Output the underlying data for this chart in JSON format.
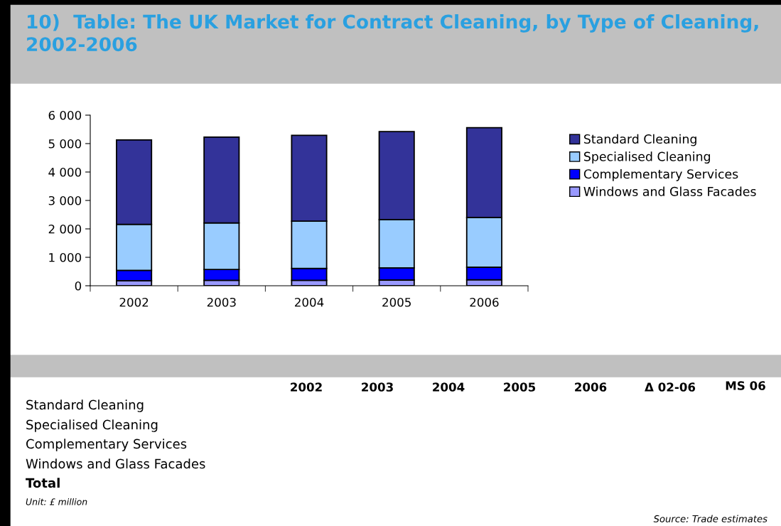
{
  "chart_data": {
    "type": "bar",
    "title": "10)  Table: The UK Market for Contract Cleaning, by Type of Cleaning, 2002-2006",
    "categories": [
      "2002",
      "2003",
      "2004",
      "2005",
      "2006"
    ],
    "stacked": true,
    "series": [
      {
        "name": "Windows and Glass Facades",
        "color": "#9999ff",
        "values": [
          180,
          190,
          190,
          200,
          210
        ]
      },
      {
        "name": "Complementary Services",
        "color": "#0000ff",
        "values": [
          360,
          380,
          420,
          430,
          440
        ]
      },
      {
        "name": "Specialised Cleaning",
        "color": "#99ccff",
        "values": [
          1620,
          1640,
          1660,
          1700,
          1750
        ]
      },
      {
        "name": "Standard Cleaning",
        "color": "#333399",
        "values": [
          2970,
          3020,
          3020,
          3090,
          3160
        ]
      }
    ],
    "ylim": [
      0,
      6000
    ],
    "yticks": [
      {
        "value": 0,
        "label": "0"
      },
      {
        "value": 1000,
        "label": "1 000"
      },
      {
        "value": 2000,
        "label": "2 000"
      },
      {
        "value": 3000,
        "label": "3 000"
      },
      {
        "value": 4000,
        "label": "4 000"
      },
      {
        "value": 5000,
        "label": "5 000"
      },
      {
        "value": 6000,
        "label": "6 000"
      }
    ],
    "grid": false,
    "legend": "right",
    "annotations": [
      "2002",
      "2003",
      "2004",
      "2005",
      "2006",
      "Δ 02-06",
      "MS 06",
      "Standard Cleaning",
      "Specialised Cleaning",
      "Complementary Services",
      "Windows and Glass Facades",
      "Total",
      "Unit: £ million",
      "Source: Trade estimates"
    ]
  }
}
